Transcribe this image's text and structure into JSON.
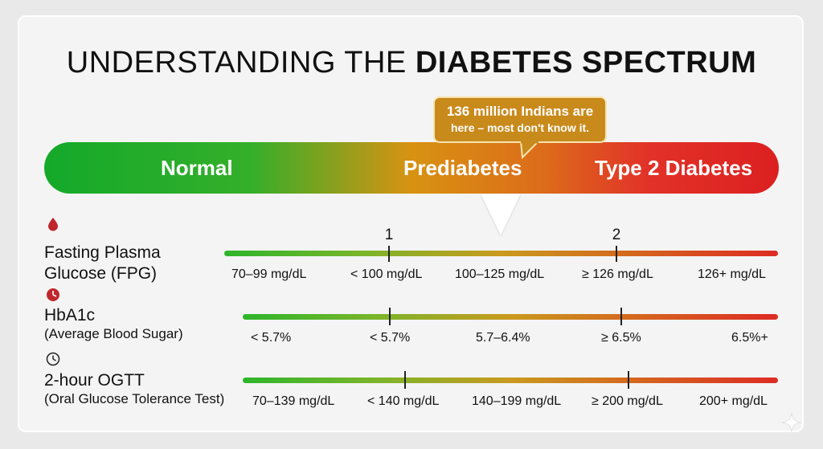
{
  "title": {
    "prefix": "UNDERSTANDING THE",
    "emphasis": "DIABETES SPECTRUM"
  },
  "spectrum": {
    "stages": [
      "Normal",
      "Prediabetes",
      "Type 2 Diabetes"
    ],
    "callout_line1": "136 million Indians are",
    "callout_line2": "here – most don't know it."
  },
  "rows": [
    {
      "icon": "blood-drop-icon",
      "name_line1": "Fasting Plasma",
      "name_line2": "Glucose (FPG)",
      "tick_labels": [
        "1",
        "2"
      ],
      "values": [
        "70–99 mg/dL",
        "< 100 mg/dL",
        "100–125 mg/dL",
        "≥ 126 mg/dL",
        "126+ mg/dL"
      ]
    },
    {
      "icon": "clock-icon",
      "name_line1": "HbA1c",
      "name_line2": "(Average Blood Sugar)",
      "values": [
        "< 5.7%",
        "< 5.7%",
        "5.7–6.4%",
        "≥ 6.5%",
        "6.5%+"
      ]
    },
    {
      "icon": "clock-outline-icon",
      "name_line1": "2-hour OGTT",
      "name_line2": "(Oral Glucose Tolerance Test)",
      "values": [
        "70–139 mg/dL",
        "< 140 mg/dL",
        "140–199 mg/dL",
        "≥ 200 mg/dL",
        "200+ mg/dL"
      ]
    }
  ],
  "colors": {
    "normal": "#14a92a",
    "prediabetes": "#d89212",
    "diabetes": "#dc2020",
    "callout": "#c98a1c"
  }
}
